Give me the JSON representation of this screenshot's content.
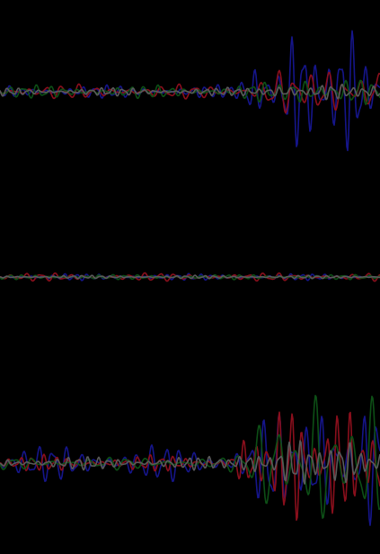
{
  "chart_data": {
    "type": "line",
    "title": "",
    "xlabel": "",
    "ylabel": "",
    "grid": false,
    "legend": "none",
    "background": "#000000",
    "colors": {
      "red": "#8a0f1c",
      "green": "#0d4f16",
      "blue": "#15158a",
      "grey": "#5a5a5a"
    },
    "panels": [
      {
        "id": "top",
        "series": [
          {
            "color_key": "blue",
            "seed": 11,
            "base_amp": 8,
            "burst_amp": 75,
            "burst_start": 0.62,
            "freq": 0.23
          },
          {
            "color_key": "red",
            "seed": 22,
            "base_amp": 9,
            "burst_amp": 32,
            "burst_start": 0.62,
            "freq": 0.17
          },
          {
            "color_key": "green",
            "seed": 33,
            "base_amp": 8,
            "burst_amp": 18,
            "burst_start": 0.62,
            "freq": 0.21
          },
          {
            "color_key": "grey",
            "seed": 44,
            "base_amp": 5,
            "burst_amp": 10,
            "burst_start": 0.62,
            "freq": 0.27
          }
        ]
      },
      {
        "id": "middle",
        "series": [
          {
            "color_key": "blue",
            "seed": 55,
            "base_amp": 4,
            "burst_amp": 4,
            "burst_start": 1.0,
            "freq": 0.25
          },
          {
            "color_key": "red",
            "seed": 66,
            "base_amp": 5,
            "burst_amp": 5,
            "burst_start": 1.0,
            "freq": 0.19
          },
          {
            "color_key": "green",
            "seed": 77,
            "base_amp": 3,
            "burst_amp": 3,
            "burst_start": 1.0,
            "freq": 0.22
          },
          {
            "color_key": "grey",
            "seed": 88,
            "base_amp": 2,
            "burst_amp": 2,
            "burst_start": 1.0,
            "freq": 0.3
          }
        ]
      },
      {
        "id": "bottom",
        "series": [
          {
            "color_key": "blue",
            "seed": 99,
            "base_amp": 22,
            "burst_amp": 75,
            "burst_start": 0.6,
            "freq": 0.2
          },
          {
            "color_key": "red",
            "seed": 111,
            "base_amp": 10,
            "burst_amp": 78,
            "burst_start": 0.6,
            "freq": 0.24
          },
          {
            "color_key": "green",
            "seed": 122,
            "base_amp": 8,
            "burst_amp": 82,
            "burst_start": 0.6,
            "freq": 0.15
          },
          {
            "color_key": "grey",
            "seed": 133,
            "base_amp": 8,
            "burst_amp": 30,
            "burst_start": 0.6,
            "freq": 0.28
          }
        ]
      }
    ]
  }
}
